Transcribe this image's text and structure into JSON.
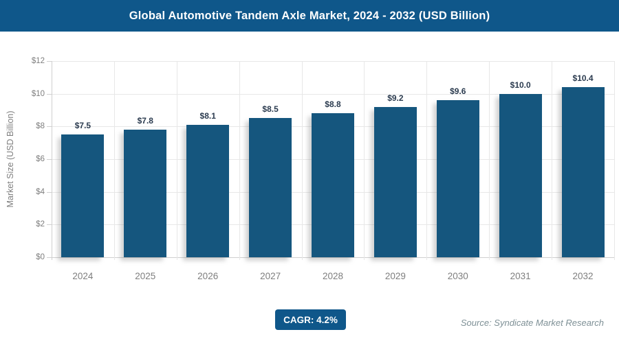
{
  "header": {
    "title": "Global Automotive Tandem Axle Market, 2024 - 2032 (USD Billion)"
  },
  "chart_data": {
    "type": "bar",
    "title": "Global Automotive Tandem Axle Market, 2024 - 2032 (USD Billion)",
    "categories": [
      "2024",
      "2025",
      "2026",
      "2027",
      "2028",
      "2029",
      "2030",
      "2031",
      "2032"
    ],
    "values": [
      7.5,
      7.8,
      8.1,
      8.5,
      8.8,
      9.2,
      9.6,
      10.0,
      10.4
    ],
    "value_labels": [
      "$7.5",
      "$7.8",
      "$8.1",
      "$8.5",
      "$8.8",
      "$9.2",
      "$9.6",
      "$10.0",
      "$10.4"
    ],
    "xlabel": "",
    "ylabel": "Market Size (USD Billion)",
    "ylim": [
      0,
      12
    ],
    "yticks": [
      {
        "value": 0,
        "label": "$0"
      },
      {
        "value": 2,
        "label": "$2"
      },
      {
        "value": 4,
        "label": "$4"
      },
      {
        "value": 6,
        "label": "$6"
      },
      {
        "value": 8,
        "label": "$8"
      },
      {
        "value": 10,
        "label": "$10"
      },
      {
        "value": 12,
        "label": "$12"
      }
    ],
    "grid": true,
    "legend": false
  },
  "footer": {
    "cagr_label": "CAGR: 4.2%",
    "source": "Source: Syndicate Market Research"
  },
  "colors": {
    "primary": "#0F578A",
    "bar": "#15567E",
    "label": "#2B3B4F",
    "axis_text": "#7E7E7E",
    "grid": "#E7E7E7",
    "source": "#7E9096"
  }
}
